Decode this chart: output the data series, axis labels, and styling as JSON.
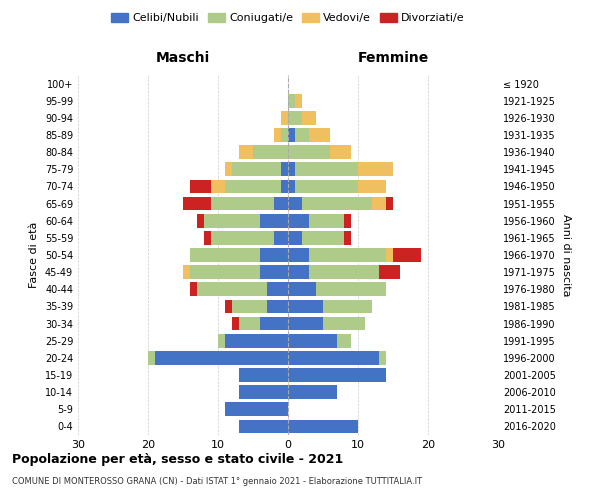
{
  "age_groups": [
    "0-4",
    "5-9",
    "10-14",
    "15-19",
    "20-24",
    "25-29",
    "30-34",
    "35-39",
    "40-44",
    "45-49",
    "50-54",
    "55-59",
    "60-64",
    "65-69",
    "70-74",
    "75-79",
    "80-84",
    "85-89",
    "90-94",
    "95-99",
    "100+"
  ],
  "birth_years": [
    "2016-2020",
    "2011-2015",
    "2006-2010",
    "2001-2005",
    "1996-2000",
    "1991-1995",
    "1986-1990",
    "1981-1985",
    "1976-1980",
    "1971-1975",
    "1966-1970",
    "1961-1965",
    "1956-1960",
    "1951-1955",
    "1946-1950",
    "1941-1945",
    "1936-1940",
    "1931-1935",
    "1926-1930",
    "1921-1925",
    "≤ 1920"
  ],
  "colors": {
    "celibi": "#4472C4",
    "coniugati": "#AECB8A",
    "vedovi": "#F0C060",
    "divorziati": "#CC2222"
  },
  "males": {
    "celibi": [
      7,
      9,
      7,
      7,
      19,
      9,
      4,
      3,
      3,
      4,
      4,
      2,
      4,
      2,
      1,
      1,
      0,
      0,
      0,
      0,
      0
    ],
    "coniugati": [
      0,
      0,
      0,
      0,
      1,
      1,
      3,
      5,
      10,
      10,
      10,
      9,
      8,
      9,
      8,
      7,
      5,
      1,
      0,
      0,
      0
    ],
    "vedovi": [
      0,
      0,
      0,
      0,
      0,
      0,
      0,
      0,
      0,
      1,
      0,
      0,
      0,
      0,
      2,
      1,
      2,
      1,
      1,
      0,
      0
    ],
    "divorziati": [
      0,
      0,
      0,
      0,
      0,
      0,
      1,
      1,
      1,
      0,
      0,
      1,
      1,
      4,
      3,
      0,
      0,
      0,
      0,
      0,
      0
    ]
  },
  "females": {
    "celibi": [
      10,
      0,
      7,
      14,
      13,
      7,
      5,
      5,
      4,
      3,
      3,
      2,
      3,
      2,
      1,
      1,
      0,
      1,
      0,
      0,
      0
    ],
    "coniugati": [
      0,
      0,
      0,
      0,
      1,
      2,
      6,
      7,
      10,
      10,
      11,
      6,
      5,
      10,
      9,
      9,
      6,
      2,
      2,
      1,
      0
    ],
    "vedovi": [
      0,
      0,
      0,
      0,
      0,
      0,
      0,
      0,
      0,
      0,
      1,
      0,
      0,
      2,
      4,
      5,
      3,
      3,
      2,
      1,
      0
    ],
    "divorziati": [
      0,
      0,
      0,
      0,
      0,
      0,
      0,
      0,
      0,
      3,
      4,
      1,
      1,
      1,
      0,
      0,
      0,
      0,
      0,
      0,
      0
    ]
  },
  "title": "Popolazione per età, sesso e stato civile - 2021",
  "subtitle": "COMUNE DI MONTEROSSO GRANA (CN) - Dati ISTAT 1° gennaio 2021 - Elaborazione TUTTITALIA.IT",
  "xlabel_left": "Maschi",
  "xlabel_right": "Femmine",
  "ylabel_left": "Fasce di età",
  "ylabel_right": "Anni di nascita",
  "xlim": 30,
  "legend_labels": [
    "Celibi/Nubili",
    "Coniugati/e",
    "Vedovi/e",
    "Divorziati/e"
  ],
  "background_color": "#FFFFFF",
  "grid_color": "#CCCCCC"
}
